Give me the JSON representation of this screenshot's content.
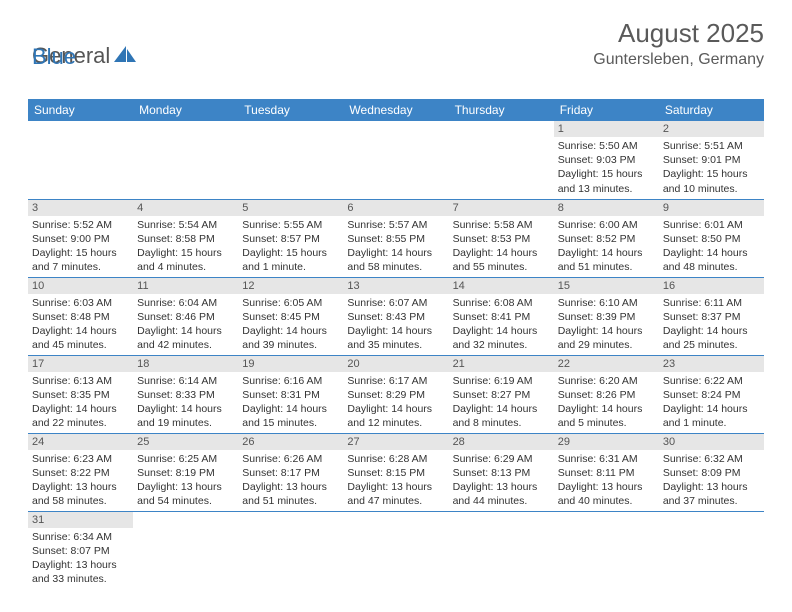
{
  "logo": {
    "text1": "General",
    "text2": "Blue"
  },
  "header": {
    "month_title": "August 2025",
    "location": "Guntersleben, Germany"
  },
  "day_headers": [
    "Sunday",
    "Monday",
    "Tuesday",
    "Wednesday",
    "Thursday",
    "Friday",
    "Saturday"
  ],
  "colors": {
    "header_bg": "#3d84c6",
    "header_text": "#ffffff",
    "daynum_bg": "#e6e6e6",
    "border": "#3d84c6",
    "logo_gray": "#555555",
    "logo_blue": "#2f75b5",
    "text": "#333333"
  },
  "grid": [
    [
      {
        "n": "",
        "l1": "",
        "l2": "",
        "l3": "",
        "l4": ""
      },
      {
        "n": "",
        "l1": "",
        "l2": "",
        "l3": "",
        "l4": ""
      },
      {
        "n": "",
        "l1": "",
        "l2": "",
        "l3": "",
        "l4": ""
      },
      {
        "n": "",
        "l1": "",
        "l2": "",
        "l3": "",
        "l4": ""
      },
      {
        "n": "",
        "l1": "",
        "l2": "",
        "l3": "",
        "l4": ""
      },
      {
        "n": "1",
        "l1": "Sunrise: 5:50 AM",
        "l2": "Sunset: 9:03 PM",
        "l3": "Daylight: 15 hours",
        "l4": "and 13 minutes."
      },
      {
        "n": "2",
        "l1": "Sunrise: 5:51 AM",
        "l2": "Sunset: 9:01 PM",
        "l3": "Daylight: 15 hours",
        "l4": "and 10 minutes."
      }
    ],
    [
      {
        "n": "3",
        "l1": "Sunrise: 5:52 AM",
        "l2": "Sunset: 9:00 PM",
        "l3": "Daylight: 15 hours",
        "l4": "and 7 minutes."
      },
      {
        "n": "4",
        "l1": "Sunrise: 5:54 AM",
        "l2": "Sunset: 8:58 PM",
        "l3": "Daylight: 15 hours",
        "l4": "and 4 minutes."
      },
      {
        "n": "5",
        "l1": "Sunrise: 5:55 AM",
        "l2": "Sunset: 8:57 PM",
        "l3": "Daylight: 15 hours",
        "l4": "and 1 minute."
      },
      {
        "n": "6",
        "l1": "Sunrise: 5:57 AM",
        "l2": "Sunset: 8:55 PM",
        "l3": "Daylight: 14 hours",
        "l4": "and 58 minutes."
      },
      {
        "n": "7",
        "l1": "Sunrise: 5:58 AM",
        "l2": "Sunset: 8:53 PM",
        "l3": "Daylight: 14 hours",
        "l4": "and 55 minutes."
      },
      {
        "n": "8",
        "l1": "Sunrise: 6:00 AM",
        "l2": "Sunset: 8:52 PM",
        "l3": "Daylight: 14 hours",
        "l4": "and 51 minutes."
      },
      {
        "n": "9",
        "l1": "Sunrise: 6:01 AM",
        "l2": "Sunset: 8:50 PM",
        "l3": "Daylight: 14 hours",
        "l4": "and 48 minutes."
      }
    ],
    [
      {
        "n": "10",
        "l1": "Sunrise: 6:03 AM",
        "l2": "Sunset: 8:48 PM",
        "l3": "Daylight: 14 hours",
        "l4": "and 45 minutes."
      },
      {
        "n": "11",
        "l1": "Sunrise: 6:04 AM",
        "l2": "Sunset: 8:46 PM",
        "l3": "Daylight: 14 hours",
        "l4": "and 42 minutes."
      },
      {
        "n": "12",
        "l1": "Sunrise: 6:05 AM",
        "l2": "Sunset: 8:45 PM",
        "l3": "Daylight: 14 hours",
        "l4": "and 39 minutes."
      },
      {
        "n": "13",
        "l1": "Sunrise: 6:07 AM",
        "l2": "Sunset: 8:43 PM",
        "l3": "Daylight: 14 hours",
        "l4": "and 35 minutes."
      },
      {
        "n": "14",
        "l1": "Sunrise: 6:08 AM",
        "l2": "Sunset: 8:41 PM",
        "l3": "Daylight: 14 hours",
        "l4": "and 32 minutes."
      },
      {
        "n": "15",
        "l1": "Sunrise: 6:10 AM",
        "l2": "Sunset: 8:39 PM",
        "l3": "Daylight: 14 hours",
        "l4": "and 29 minutes."
      },
      {
        "n": "16",
        "l1": "Sunrise: 6:11 AM",
        "l2": "Sunset: 8:37 PM",
        "l3": "Daylight: 14 hours",
        "l4": "and 25 minutes."
      }
    ],
    [
      {
        "n": "17",
        "l1": "Sunrise: 6:13 AM",
        "l2": "Sunset: 8:35 PM",
        "l3": "Daylight: 14 hours",
        "l4": "and 22 minutes."
      },
      {
        "n": "18",
        "l1": "Sunrise: 6:14 AM",
        "l2": "Sunset: 8:33 PM",
        "l3": "Daylight: 14 hours",
        "l4": "and 19 minutes."
      },
      {
        "n": "19",
        "l1": "Sunrise: 6:16 AM",
        "l2": "Sunset: 8:31 PM",
        "l3": "Daylight: 14 hours",
        "l4": "and 15 minutes."
      },
      {
        "n": "20",
        "l1": "Sunrise: 6:17 AM",
        "l2": "Sunset: 8:29 PM",
        "l3": "Daylight: 14 hours",
        "l4": "and 12 minutes."
      },
      {
        "n": "21",
        "l1": "Sunrise: 6:19 AM",
        "l2": "Sunset: 8:27 PM",
        "l3": "Daylight: 14 hours",
        "l4": "and 8 minutes."
      },
      {
        "n": "22",
        "l1": "Sunrise: 6:20 AM",
        "l2": "Sunset: 8:26 PM",
        "l3": "Daylight: 14 hours",
        "l4": "and 5 minutes."
      },
      {
        "n": "23",
        "l1": "Sunrise: 6:22 AM",
        "l2": "Sunset: 8:24 PM",
        "l3": "Daylight: 14 hours",
        "l4": "and 1 minute."
      }
    ],
    [
      {
        "n": "24",
        "l1": "Sunrise: 6:23 AM",
        "l2": "Sunset: 8:22 PM",
        "l3": "Daylight: 13 hours",
        "l4": "and 58 minutes."
      },
      {
        "n": "25",
        "l1": "Sunrise: 6:25 AM",
        "l2": "Sunset: 8:19 PM",
        "l3": "Daylight: 13 hours",
        "l4": "and 54 minutes."
      },
      {
        "n": "26",
        "l1": "Sunrise: 6:26 AM",
        "l2": "Sunset: 8:17 PM",
        "l3": "Daylight: 13 hours",
        "l4": "and 51 minutes."
      },
      {
        "n": "27",
        "l1": "Sunrise: 6:28 AM",
        "l2": "Sunset: 8:15 PM",
        "l3": "Daylight: 13 hours",
        "l4": "and 47 minutes."
      },
      {
        "n": "28",
        "l1": "Sunrise: 6:29 AM",
        "l2": "Sunset: 8:13 PM",
        "l3": "Daylight: 13 hours",
        "l4": "and 44 minutes."
      },
      {
        "n": "29",
        "l1": "Sunrise: 6:31 AM",
        "l2": "Sunset: 8:11 PM",
        "l3": "Daylight: 13 hours",
        "l4": "and 40 minutes."
      },
      {
        "n": "30",
        "l1": "Sunrise: 6:32 AM",
        "l2": "Sunset: 8:09 PM",
        "l3": "Daylight: 13 hours",
        "l4": "and 37 minutes."
      }
    ],
    [
      {
        "n": "31",
        "l1": "Sunrise: 6:34 AM",
        "l2": "Sunset: 8:07 PM",
        "l3": "Daylight: 13 hours",
        "l4": "and 33 minutes."
      },
      {
        "n": "",
        "l1": "",
        "l2": "",
        "l3": "",
        "l4": ""
      },
      {
        "n": "",
        "l1": "",
        "l2": "",
        "l3": "",
        "l4": ""
      },
      {
        "n": "",
        "l1": "",
        "l2": "",
        "l3": "",
        "l4": ""
      },
      {
        "n": "",
        "l1": "",
        "l2": "",
        "l3": "",
        "l4": ""
      },
      {
        "n": "",
        "l1": "",
        "l2": "",
        "l3": "",
        "l4": ""
      },
      {
        "n": "",
        "l1": "",
        "l2": "",
        "l3": "",
        "l4": ""
      }
    ]
  ]
}
